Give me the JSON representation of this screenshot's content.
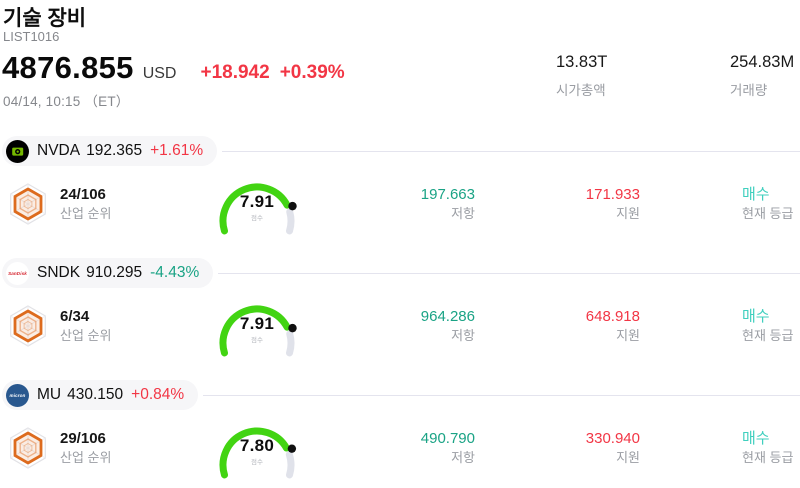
{
  "header": {
    "title": "기술 장비",
    "list_id": "LIST1016",
    "price": "4876.855",
    "currency": "USD",
    "change_abs": "+18.942",
    "change_pct": "+0.39%",
    "datetime": "04/14, 10:15 （ET）",
    "stats": {
      "market_cap_value": "13.83T",
      "market_cap_label": "시가총액",
      "volume_value": "254.83M",
      "volume_label": "거래량"
    }
  },
  "labels": {
    "industry_rank": "산업 순위",
    "resistance": "저항",
    "support": "지원",
    "current_rating": "현재 등급",
    "score": "점수"
  },
  "colors": {
    "up_red": "#f23645",
    "down_teal": "#1aa385",
    "resistance_teal": "#1aa385",
    "support_red": "#f23645",
    "rating_teal": "#3fcfbe",
    "gauge_green": "#42d412",
    "gauge_track": "#e0e2ea",
    "pill_background": "#f6f6f8",
    "muted_text": "#9a9da3"
  },
  "stocks": [
    {
      "ticker": "NVDA",
      "price": "192.365",
      "change_pct": "+1.61%",
      "change_dir": "up",
      "logo_text": "",
      "industry_rank": "24/106",
      "score": "7.91",
      "score_value": 7.91,
      "resistance": "197.663",
      "support": "171.933",
      "rating": "매수"
    },
    {
      "ticker": "SNDK",
      "price": "910.295",
      "change_pct": "-4.43%",
      "change_dir": "down",
      "logo_text": "SanDisk",
      "industry_rank": "6/34",
      "score": "7.91",
      "score_value": 7.91,
      "resistance": "964.286",
      "support": "648.918",
      "rating": "매수"
    },
    {
      "ticker": "MU",
      "price": "430.150",
      "change_pct": "+0.84%",
      "change_dir": "up",
      "logo_text": "micron",
      "industry_rank": "29/106",
      "score": "7.80",
      "score_value": 7.8,
      "resistance": "490.790",
      "support": "330.940",
      "rating": "매수"
    }
  ]
}
